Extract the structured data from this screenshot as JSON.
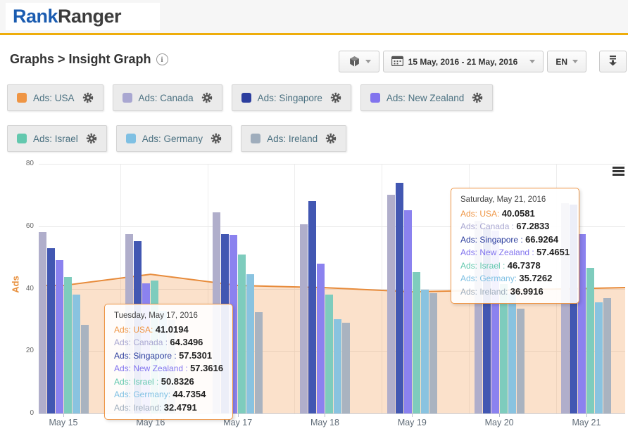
{
  "brand": {
    "logo_part1": "Rank",
    "logo_part2": "Ranger"
  },
  "page": {
    "title": "Graphs > Insight Graph",
    "info_glyph": "i"
  },
  "toolbar": {
    "date_range": "15 May, 2016 - 21 May, 2016",
    "language": "EN",
    "icons": [
      "cube-icon",
      "calendar-icon",
      "caret-down-icon",
      "download-icon",
      "hamburger-icon",
      "gear-icon",
      "info-icon"
    ]
  },
  "colors": {
    "gold_accent": "#eead0b",
    "logo_blue": "#1b5cb0",
    "axis_title_orange": "#e8903d",
    "tooltip_border": "#ef9544"
  },
  "chart_data": {
    "type": "combo: area (USA) + grouped bars (other countries)",
    "title": "",
    "ylabel": "Ads",
    "xlabel": "",
    "ylim": [
      0,
      80
    ],
    "yticks": [
      0,
      20,
      40,
      60,
      80
    ],
    "grid": true,
    "legend_position": "top chips",
    "categories": [
      "May 15",
      "May 16",
      "May 17",
      "May 18",
      "May 19",
      "May 20",
      "May 21"
    ],
    "series": [
      {
        "name": "Ads: USA",
        "type": "area",
        "chip_color": "#ef9544",
        "line_color": "#e78b3b",
        "fill_color": "rgba(239,149,68,0.28)",
        "values": [
          41.0,
          44.6,
          41.0194,
          40.3,
          39.0,
          39.5,
          40.0581
        ]
      },
      {
        "name": "Ads: Canada",
        "type": "bar",
        "chip_color": "#a9a7d1",
        "render_color": "#b0aecb",
        "values": [
          58.2,
          57.5,
          64.3496,
          60.7,
          70.1,
          61.8,
          67.2833
        ]
      },
      {
        "name": "Ads: Singapore",
        "type": "bar",
        "chip_color": "#2c3e9e",
        "render_color": "#4257b2",
        "values": [
          53.0,
          55.3,
          57.5301,
          68.1,
          73.9,
          59.3,
          66.9264
        ]
      },
      {
        "name": "Ads: New Zealand",
        "type": "bar",
        "chip_color": "#8274ee",
        "render_color": "#8b82ef",
        "values": [
          49.2,
          41.8,
          57.3616,
          48.1,
          65.2,
          58.5,
          57.4651
        ]
      },
      {
        "name": "Ads: Israel",
        "type": "bar",
        "chip_color": "#63c8ae",
        "render_color": "#7eccbd",
        "values": [
          43.8,
          42.5,
          50.8326,
          38.2,
          45.4,
          41.5,
          46.7378
        ]
      },
      {
        "name": "Ads: Germany",
        "type": "bar",
        "chip_color": "#7fc0e3",
        "render_color": "#89c3e0",
        "values": [
          38.2,
          33.0,
          44.7354,
          30.3,
          39.6,
          38.4,
          35.7262
        ]
      },
      {
        "name": "Ads: Ireland",
        "type": "bar",
        "chip_color": "#9fadbc",
        "render_color": "#a9b3c0",
        "values": [
          28.3,
          30.0,
          32.4791,
          29.0,
          38.6,
          33.7,
          36.9916
        ]
      }
    ]
  },
  "tooltips": [
    {
      "title": "Tuesday, May 17, 2016",
      "rows": [
        {
          "label": "Ads: USA",
          "sep": ": ",
          "value": "41.0194"
        },
        {
          "label": "Ads: Canada",
          "sep": " : ",
          "value": "64.3496"
        },
        {
          "label": "Ads: Singapore",
          "sep": " : ",
          "value": "57.5301"
        },
        {
          "label": "Ads: New Zealand",
          "sep": " : ",
          "value": "57.3616"
        },
        {
          "label": "Ads: Israel",
          "sep": " : ",
          "value": "50.8326"
        },
        {
          "label": "Ads: Germany",
          "sep": ": ",
          "value": "44.7354"
        },
        {
          "label": "Ads: Ireland",
          "sep": ": ",
          "value": "32.4791"
        }
      ]
    },
    {
      "title": "Saturday, May 21, 2016",
      "rows": [
        {
          "label": "Ads: USA",
          "sep": ": ",
          "value": "40.0581"
        },
        {
          "label": "Ads: Canada",
          "sep": " : ",
          "value": "67.2833"
        },
        {
          "label": "Ads: Singapore",
          "sep": " : ",
          "value": "66.9264"
        },
        {
          "label": "Ads: New Zealand",
          "sep": " : ",
          "value": "57.4651"
        },
        {
          "label": "Ads: Israel",
          "sep": " : ",
          "value": "46.7378"
        },
        {
          "label": "Ads: Germany",
          "sep": ": ",
          "value": "35.7262"
        },
        {
          "label": "Ads: Ireland",
          "sep": ": ",
          "value": "36.9916"
        }
      ]
    }
  ]
}
